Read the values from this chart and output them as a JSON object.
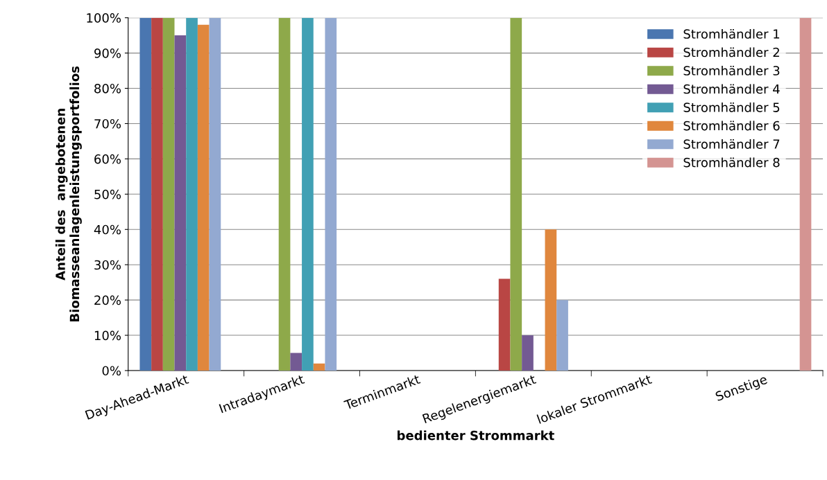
{
  "chart_data": {
    "type": "bar",
    "xlabel": "bedienter Strommarkt",
    "ylabel": "Anteil des  angebotenen\nBiomasseanlagenleistungsportfolios",
    "categories": [
      "Day-Ahead-Markt",
      "Intradaymarkt",
      "Terminmarkt",
      "Regelenergiemarkt",
      "lokaler Strommarkt",
      "Sonstige"
    ],
    "series": [
      {
        "name": "Stromhändler 1",
        "color": "#4a76b0",
        "values": [
          100,
          0,
          0,
          0,
          0,
          0
        ]
      },
      {
        "name": "Stromhändler 2",
        "color": "#b94644",
        "values": [
          100,
          0,
          0,
          26,
          0,
          0
        ]
      },
      {
        "name": "Stromhändler 3",
        "color": "#8ea94a",
        "values": [
          100,
          100,
          0,
          100,
          0,
          0
        ]
      },
      {
        "name": "Stromhändler 4",
        "color": "#735a93",
        "values": [
          95,
          5,
          0,
          10,
          0,
          0
        ]
      },
      {
        "name": "Stromhändler 5",
        "color": "#41a0b4",
        "values": [
          100,
          100,
          0,
          0,
          0,
          0
        ]
      },
      {
        "name": "Stromhändler 6",
        "color": "#e0873d",
        "values": [
          98,
          2,
          0,
          40,
          0,
          0
        ]
      },
      {
        "name": "Stromhändler 7",
        "color": "#93a9d1",
        "values": [
          100,
          100,
          0,
          20,
          0,
          0
        ]
      },
      {
        "name": "Stromhändler 8",
        "color": "#d49492",
        "values": [
          0,
          0,
          0,
          0,
          0,
          100
        ]
      }
    ],
    "ylim": [
      0,
      100
    ],
    "yticks": [
      {
        "value": 0,
        "label": "0%"
      },
      {
        "value": 10,
        "label": "10%"
      },
      {
        "value": 20,
        "label": "20%"
      },
      {
        "value": 30,
        "label": "30%"
      },
      {
        "value": 40,
        "label": "40%"
      },
      {
        "value": 50,
        "label": "50%"
      },
      {
        "value": 60,
        "label": "60%"
      },
      {
        "value": 70,
        "label": "70%"
      },
      {
        "value": 80,
        "label": "80%"
      },
      {
        "value": 90,
        "label": "90%"
      },
      {
        "value": 100,
        "label": "100%"
      }
    ],
    "grid": "y",
    "legend": "top right"
  }
}
